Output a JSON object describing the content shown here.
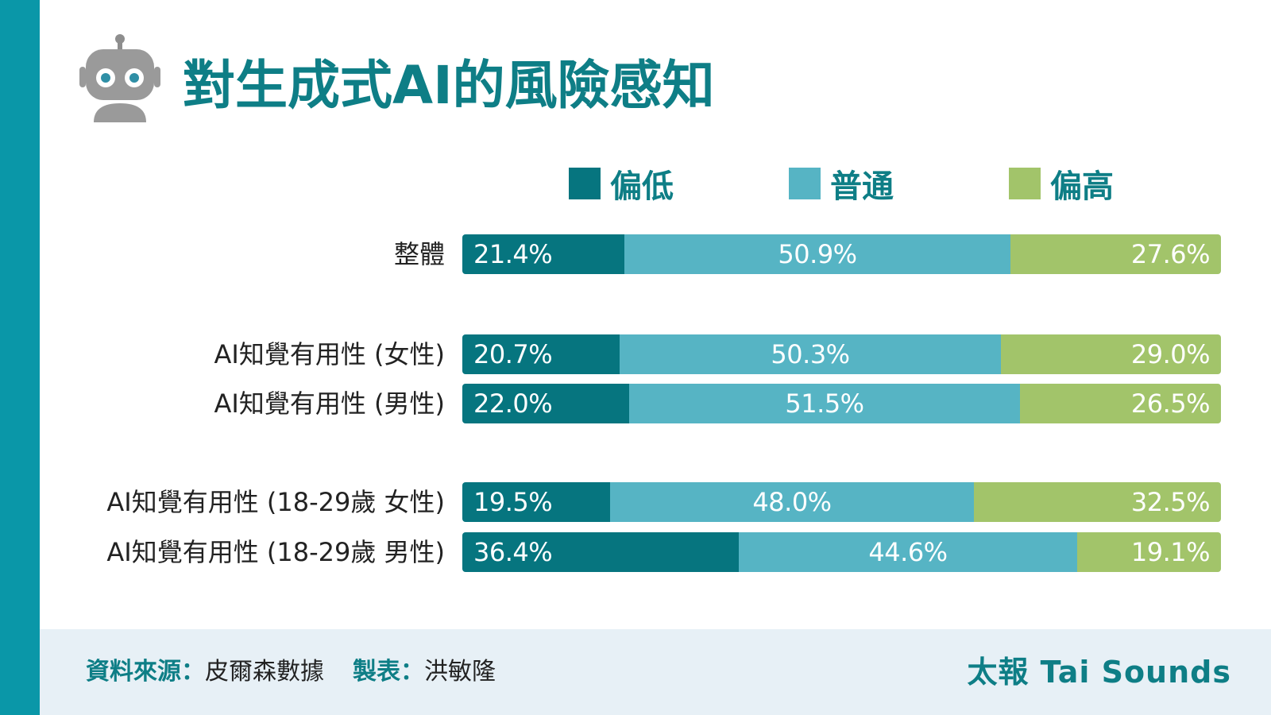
{
  "header": {
    "title": "對生成式AI的風險感知",
    "robot_icon": "robot-icon"
  },
  "chart_data": {
    "type": "bar",
    "orientation": "horizontal",
    "stacked": true,
    "unit": "%",
    "xlim": [
      0,
      100
    ],
    "legend_position": "top",
    "grid": false,
    "categories": [
      "整體",
      "AI知覺有用性 (女性)",
      "AI知覺有用性 (男性)",
      "AI知覺有用性 (18-29歲 女性)",
      "AI知覺有用性 (18-29歲 男性)"
    ],
    "series": [
      {
        "name": "偏低",
        "color": "#06757f",
        "values": [
          21.4,
          20.7,
          22.0,
          19.5,
          36.4
        ],
        "labels": [
          "21.4%",
          "20.7%",
          "22.0%",
          "19.5%",
          "36.4%"
        ]
      },
      {
        "name": "普通",
        "color": "#56b4c4",
        "values": [
          50.9,
          50.3,
          51.5,
          48.0,
          44.6
        ],
        "labels": [
          "50.9%",
          "50.3%",
          "51.5%",
          "48.0%",
          "44.6%"
        ]
      },
      {
        "name": "偏高",
        "color": "#a2c46a",
        "values": [
          27.6,
          29.0,
          26.5,
          32.5,
          19.1
        ],
        "labels": [
          "27.6%",
          "29.0%",
          "26.5%",
          "32.5%",
          "19.1%"
        ]
      }
    ]
  },
  "footer": {
    "source_key": "資料來源：",
    "source_value": "皮爾森數據",
    "maker_key": "製表：",
    "maker_value": "洪敏隆",
    "brand": "太報 Tai Sounds"
  },
  "colors": {
    "sidebar": "#0a97a8",
    "title": "#0e7e86",
    "footer_bg": "#e7f0f6"
  }
}
